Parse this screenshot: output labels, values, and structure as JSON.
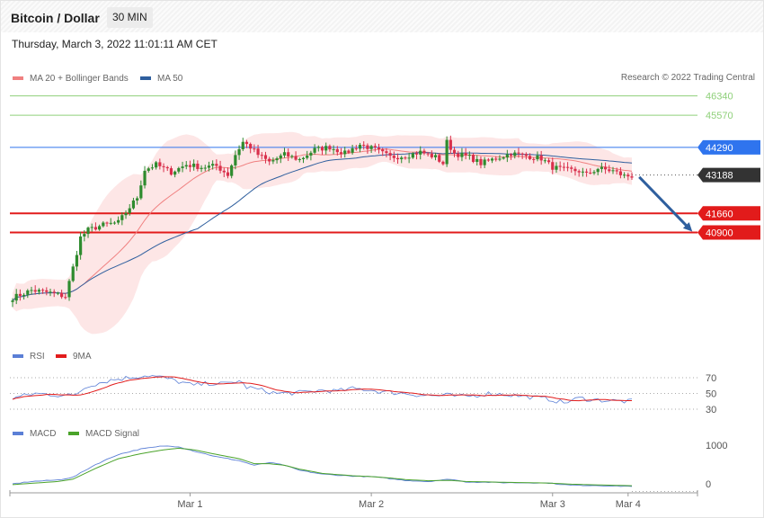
{
  "header": {
    "title": "Bitcoin / Dollar",
    "timeframe": "30 MIN",
    "timestamp": "Thursday, March 3, 2022 11:01:11 AM CET"
  },
  "colors": {
    "ma20": "#f08080",
    "ma50": "#2f5f9e",
    "resistance": "#8fd07a",
    "pivot": "#2f74ee",
    "support": "#e21b1b",
    "current": "#333333",
    "up_candle": "#2e8b2e",
    "down_candle": "#d9304c",
    "band_fill": "#fde2e2",
    "rsi": "#5b7fd6",
    "rsi_ma": "#e21b1b",
    "macd": "#5b7fd6",
    "macd_signal": "#4aa32a",
    "arrow": "#2f5f9e"
  },
  "chart_data": [
    {
      "type": "candlestick",
      "panel": "price",
      "legend": [
        {
          "label": "MA 20 + Bollinger Bands",
          "color": "#f08080"
        },
        {
          "label": "MA 50",
          "color": "#2f5f9e"
        }
      ],
      "copyright": "Research © 2022 Trading Central",
      "ylim": [
        36000,
        48000
      ],
      "x_ticks": [
        {
          "label": "Mar 1",
          "index": 47
        },
        {
          "label": "Mar 2",
          "index": 95
        },
        {
          "label": "Mar 3",
          "index": 143
        },
        {
          "label": "Mar 4",
          "index": 163
        }
      ],
      "levels": [
        {
          "label": "46340",
          "value": 46340,
          "role": "resistance"
        },
        {
          "label": "45570",
          "value": 45570,
          "role": "resistance"
        },
        {
          "label": "44290",
          "value": 44290,
          "role": "pivot"
        },
        {
          "label": "43188",
          "value": 43188,
          "role": "current"
        },
        {
          "label": "41660",
          "value": 41660,
          "role": "support"
        },
        {
          "label": "40900",
          "value": 40900,
          "role": "support"
        }
      ],
      "arrow": {
        "from_index": 165,
        "from_value": 43180,
        "to_index": 180,
        "to_value": 40900
      },
      "anchors": [
        [
          0,
          38300
        ],
        [
          5,
          38600
        ],
        [
          10,
          38500
        ],
        [
          14,
          38350
        ],
        [
          16,
          39500
        ],
        [
          18,
          40700
        ],
        [
          20,
          41000
        ],
        [
          24,
          41200
        ],
        [
          28,
          41300
        ],
        [
          31,
          41900
        ],
        [
          33,
          42300
        ],
        [
          35,
          43400
        ],
        [
          38,
          43600
        ],
        [
          42,
          43300
        ],
        [
          46,
          43600
        ],
        [
          50,
          43500
        ],
        [
          54,
          43550
        ],
        [
          57,
          43200
        ],
        [
          59,
          44000
        ],
        [
          61,
          44500
        ],
        [
          63,
          44300
        ],
        [
          65,
          44000
        ],
        [
          68,
          43700
        ],
        [
          72,
          44000
        ],
        [
          76,
          43800
        ],
        [
          80,
          44200
        ],
        [
          84,
          44300
        ],
        [
          88,
          44050
        ],
        [
          92,
          44400
        ],
        [
          96,
          44200
        ],
        [
          100,
          43900
        ],
        [
          104,
          43950
        ],
        [
          108,
          44100
        ],
        [
          112,
          43900
        ],
        [
          114,
          43650
        ],
        [
          115,
          44500
        ],
        [
          117,
          44050
        ],
        [
          121,
          43900
        ],
        [
          124,
          43650
        ],
        [
          128,
          43850
        ],
        [
          132,
          44050
        ],
        [
          136,
          43950
        ],
        [
          140,
          43850
        ],
        [
          143,
          43500
        ],
        [
          146,
          43400
        ],
        [
          150,
          43350
        ],
        [
          152,
          43200
        ],
        [
          155,
          43450
        ],
        [
          159,
          43350
        ],
        [
          162,
          43150
        ]
      ]
    },
    {
      "type": "line",
      "panel": "rsi",
      "legend": [
        {
          "label": "RSI",
          "color": "#5b7fd6"
        },
        {
          "label": "9MA",
          "color": "#e21b1b"
        }
      ],
      "ylim": [
        30,
        70
      ],
      "ticks": [
        "70",
        "50",
        "30"
      ],
      "anchors": [
        [
          0,
          44
        ],
        [
          6,
          50
        ],
        [
          12,
          48
        ],
        [
          16,
          47
        ],
        [
          20,
          60
        ],
        [
          26,
          67
        ],
        [
          32,
          71
        ],
        [
          36,
          73
        ],
        [
          40,
          70
        ],
        [
          44,
          65
        ],
        [
          48,
          60
        ],
        [
          52,
          63
        ],
        [
          56,
          62
        ],
        [
          60,
          66
        ],
        [
          62,
          58
        ],
        [
          66,
          54
        ],
        [
          70,
          50
        ],
        [
          76,
          51
        ],
        [
          82,
          54
        ],
        [
          86,
          53
        ],
        [
          90,
          56
        ],
        [
          94,
          55
        ],
        [
          98,
          52
        ],
        [
          104,
          50
        ],
        [
          108,
          48
        ],
        [
          112,
          47
        ],
        [
          115,
          48
        ],
        [
          118,
          46
        ],
        [
          122,
          47
        ],
        [
          126,
          50
        ],
        [
          130,
          49
        ],
        [
          134,
          47
        ],
        [
          138,
          45
        ],
        [
          142,
          43
        ],
        [
          146,
          38
        ],
        [
          150,
          44
        ],
        [
          154,
          42
        ],
        [
          158,
          41
        ],
        [
          162,
          40
        ]
      ]
    },
    {
      "type": "line",
      "panel": "macd",
      "legend": [
        {
          "label": "MACD",
          "color": "#5b7fd6"
        },
        {
          "label": "MACD Signal",
          "color": "#4aa32a"
        }
      ],
      "ylim": [
        -150,
        1150
      ],
      "ticks": [
        "1000",
        "0"
      ],
      "macd_anchors": [
        [
          0,
          0
        ],
        [
          5,
          60
        ],
        [
          12,
          100
        ],
        [
          16,
          170
        ],
        [
          22,
          500
        ],
        [
          28,
          760
        ],
        [
          34,
          900
        ],
        [
          40,
          980
        ],
        [
          44,
          960
        ],
        [
          48,
          850
        ],
        [
          54,
          700
        ],
        [
          60,
          600
        ],
        [
          64,
          480
        ],
        [
          68,
          550
        ],
        [
          72,
          480
        ],
        [
          76,
          350
        ],
        [
          82,
          250
        ],
        [
          90,
          200
        ],
        [
          96,
          180
        ],
        [
          100,
          130
        ],
        [
          104,
          90
        ],
        [
          110,
          60
        ],
        [
          116,
          120
        ],
        [
          120,
          50
        ],
        [
          126,
          40
        ],
        [
          130,
          30
        ],
        [
          136,
          30
        ],
        [
          142,
          20
        ],
        [
          148,
          -40
        ],
        [
          154,
          -40
        ],
        [
          160,
          -60
        ],
        [
          164,
          -60
        ]
      ],
      "signal_anchors": [
        [
          0,
          -20
        ],
        [
          6,
          20
        ],
        [
          12,
          60
        ],
        [
          16,
          120
        ],
        [
          22,
          400
        ],
        [
          28,
          650
        ],
        [
          34,
          780
        ],
        [
          40,
          880
        ],
        [
          44,
          920
        ],
        [
          48,
          880
        ],
        [
          54,
          760
        ],
        [
          60,
          650
        ],
        [
          64,
          520
        ],
        [
          68,
          520
        ],
        [
          72,
          480
        ],
        [
          76,
          380
        ],
        [
          82,
          270
        ],
        [
          90,
          210
        ],
        [
          96,
          180
        ],
        [
          100,
          150
        ],
        [
          104,
          110
        ],
        [
          110,
          80
        ],
        [
          116,
          90
        ],
        [
          120,
          60
        ],
        [
          126,
          50
        ],
        [
          130,
          40
        ],
        [
          136,
          30
        ],
        [
          142,
          20
        ],
        [
          148,
          -10
        ],
        [
          154,
          -25
        ],
        [
          160,
          -40
        ],
        [
          164,
          -50
        ]
      ]
    }
  ]
}
